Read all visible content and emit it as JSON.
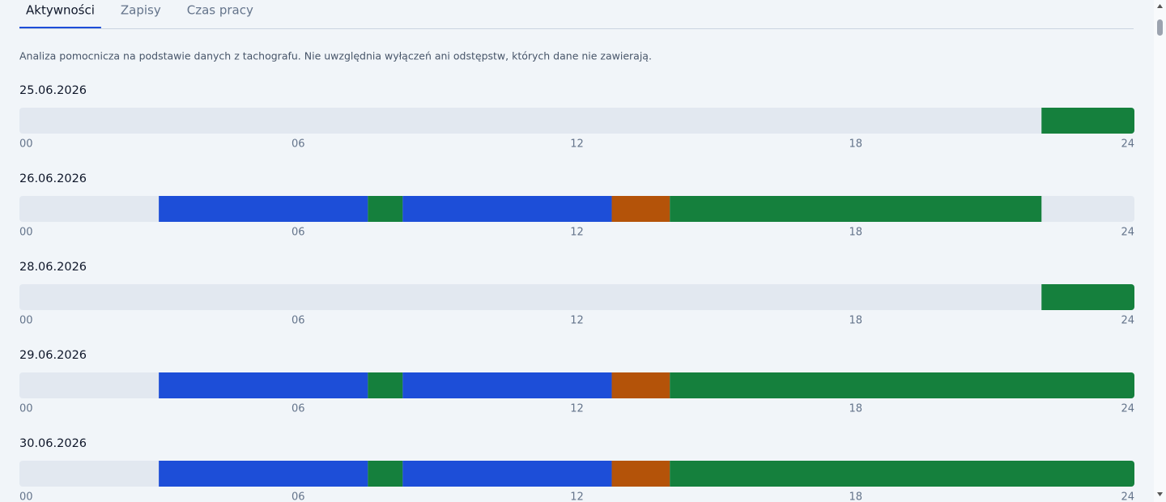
{
  "tabs": [
    "Aktywności",
    "Zapisy",
    "Czas pracy"
  ],
  "active_tab": 0,
  "note": "Analiza pomocnicza na podstawie danych z tachografu. Nie uwzględnia wyłączeń ani odstępstw, których dane nie zawierają.",
  "timeline": {
    "xlim": [
      0,
      24
    ],
    "xticks": [
      {
        "value": 0,
        "label": "00"
      },
      {
        "value": 6,
        "label": "06"
      },
      12,
      18,
      24
    ],
    "days": [
      {
        "date": "25.06.2026",
        "segments": [
          {
            "start": 22,
            "end": 24,
            "color": "#15803d"
          }
        ]
      },
      {
        "date": "26.06.2026",
        "segments": [
          {
            "start": 3,
            "end": 7.5,
            "color": "#1d4ed8"
          },
          {
            "start": 7.5,
            "end": 8.25,
            "color": "#15803d"
          },
          {
            "start": 8.25,
            "end": 12.75,
            "color": "#1d4ed8"
          },
          {
            "start": 12.75,
            "end": 14,
            "color": "#b45309"
          },
          {
            "start": 14,
            "end": 22,
            "color": "#15803d"
          }
        ]
      },
      {
        "date": "28.06.2026",
        "segments": [
          {
            "start": 22,
            "end": 24,
            "color": "#15803d"
          }
        ]
      },
      {
        "date": "29.06.2026",
        "segments": [
          {
            "start": 3,
            "end": 7.5,
            "color": "#1d4ed8"
          },
          {
            "start": 7.5,
            "end": 8.25,
            "color": "#15803d"
          },
          {
            "start": 8.25,
            "end": 12.75,
            "color": "#1d4ed8"
          },
          {
            "start": 12.75,
            "end": 14,
            "color": "#b45309"
          },
          {
            "start": 14,
            "end": 24,
            "color": "#15803d"
          }
        ]
      },
      {
        "date": "30.06.2026",
        "segments": [
          {
            "start": 3,
            "end": 7.5,
            "color": "#1d4ed8"
          },
          {
            "start": 7.5,
            "end": 8.25,
            "color": "#15803d"
          },
          {
            "start": 8.25,
            "end": 12.75,
            "color": "#1d4ed8"
          },
          {
            "start": 12.75,
            "end": 14,
            "color": "#b45309"
          },
          {
            "start": 14,
            "end": 24,
            "color": "#15803d"
          }
        ]
      }
    ]
  }
}
